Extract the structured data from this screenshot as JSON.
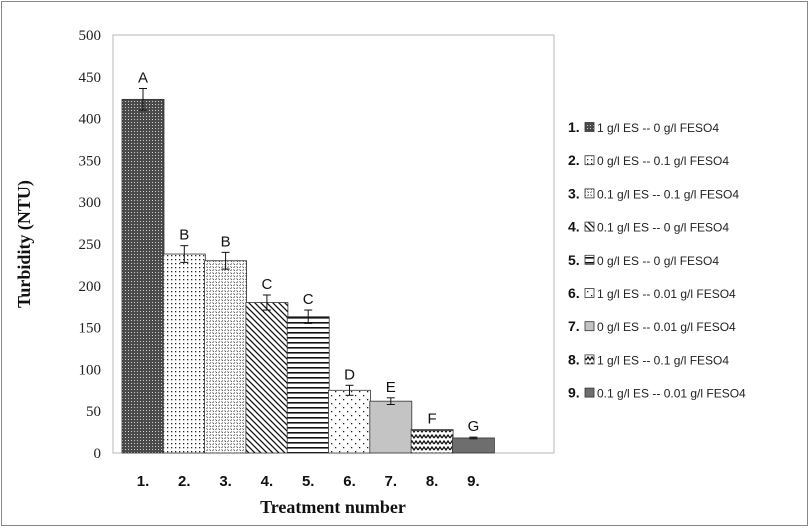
{
  "chart_data": {
    "type": "bar",
    "xlabel": "Treatment number",
    "ylabel": "Turbidity (NTU)",
    "ylim": [
      0,
      500
    ],
    "yticks": [
      0,
      50,
      100,
      150,
      200,
      250,
      300,
      350,
      400,
      450,
      500
    ],
    "grid": false,
    "legend_position": "right",
    "categories": [
      "1.",
      "2.",
      "3.",
      "4.",
      "5.",
      "6.",
      "7.",
      "8.",
      "9."
    ],
    "values": [
      423,
      238,
      230,
      180,
      163,
      75,
      62,
      28,
      18
    ],
    "errors": [
      13,
      10,
      10,
      9,
      8,
      6,
      4,
      0,
      1
    ],
    "significance_letters": [
      "A",
      "B",
      "B",
      "C",
      "C",
      "D",
      "E",
      "F",
      "G"
    ],
    "patterns": [
      "dense-dots",
      "dots",
      "cross-dots",
      "diagonal",
      "horizontal",
      "sparse-dots",
      "solid-light",
      "zigzag",
      "solid-dark"
    ],
    "legend": [
      {
        "number": "1.",
        "label": "1 g/l ES -- 0 g/l FESO4"
      },
      {
        "number": "2.",
        "label": "0 g/l ES -- 0.1 g/l FESO4"
      },
      {
        "number": "3.",
        "label": "0.1 g/l ES -- 0.1 g/l FESO4"
      },
      {
        "number": "4.",
        "label": "0.1 g/l ES -- 0 g/l FESO4"
      },
      {
        "number": "5.",
        "label": "0 g/l ES -- 0 g/l FESO4"
      },
      {
        "number": "6.",
        "label": "1 g/l ES -- 0.01 g/l FESO4"
      },
      {
        "number": "7.",
        "label": "0 g/l ES -- 0.01 g/l FESO4"
      },
      {
        "number": "8.",
        "label": "1 g/l ES -- 0.1 g/l FESO4"
      },
      {
        "number": "9.",
        "label": "0.1 g/l ES -- 0.01 g/l FESO4"
      }
    ]
  }
}
